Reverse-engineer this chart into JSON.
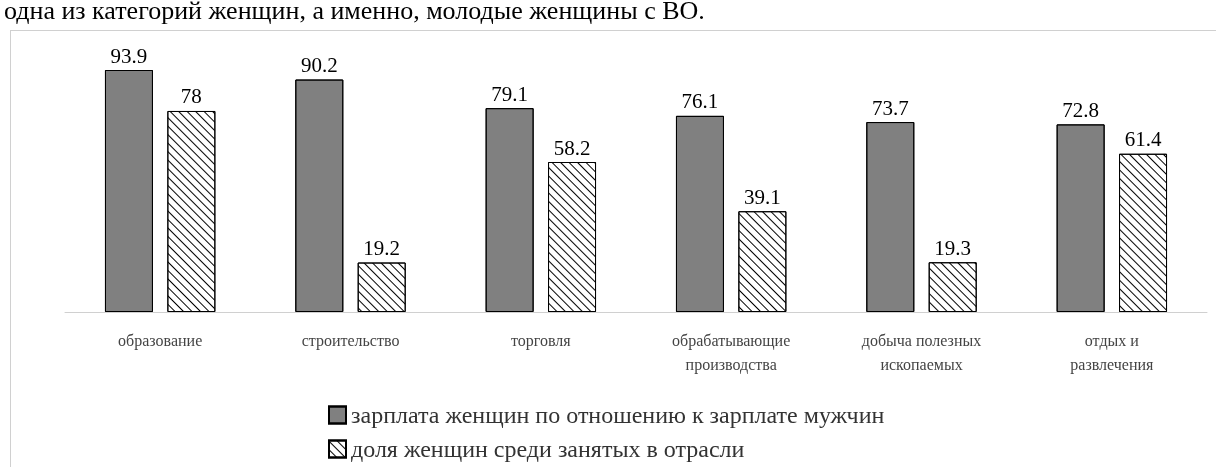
{
  "chart_data": {
    "type": "bar",
    "annotations": [
      "одна из категорий женщин, а именно, молодые женщины с ВО."
    ],
    "categories": [
      "образование",
      "строительство",
      "торговля",
      "обрабатывающие\nпроизводства",
      "добыча полезных\nископаемых",
      "отдых и\nразвлечения"
    ],
    "series": [
      {
        "name": "зарплата женщин по отношению к зарплате мужчин",
        "color": "#808080",
        "values": [
          93.9,
          90.2,
          79.1,
          76.1,
          73.7,
          72.8
        ]
      },
      {
        "name": "доля женщин среди занятых в отрасли",
        "color": "#ffffff",
        "values": [
          78,
          19.2,
          58.2,
          39.1,
          19.3,
          61.4
        ]
      }
    ],
    "data_labels": true,
    "legend": "bottom"
  }
}
